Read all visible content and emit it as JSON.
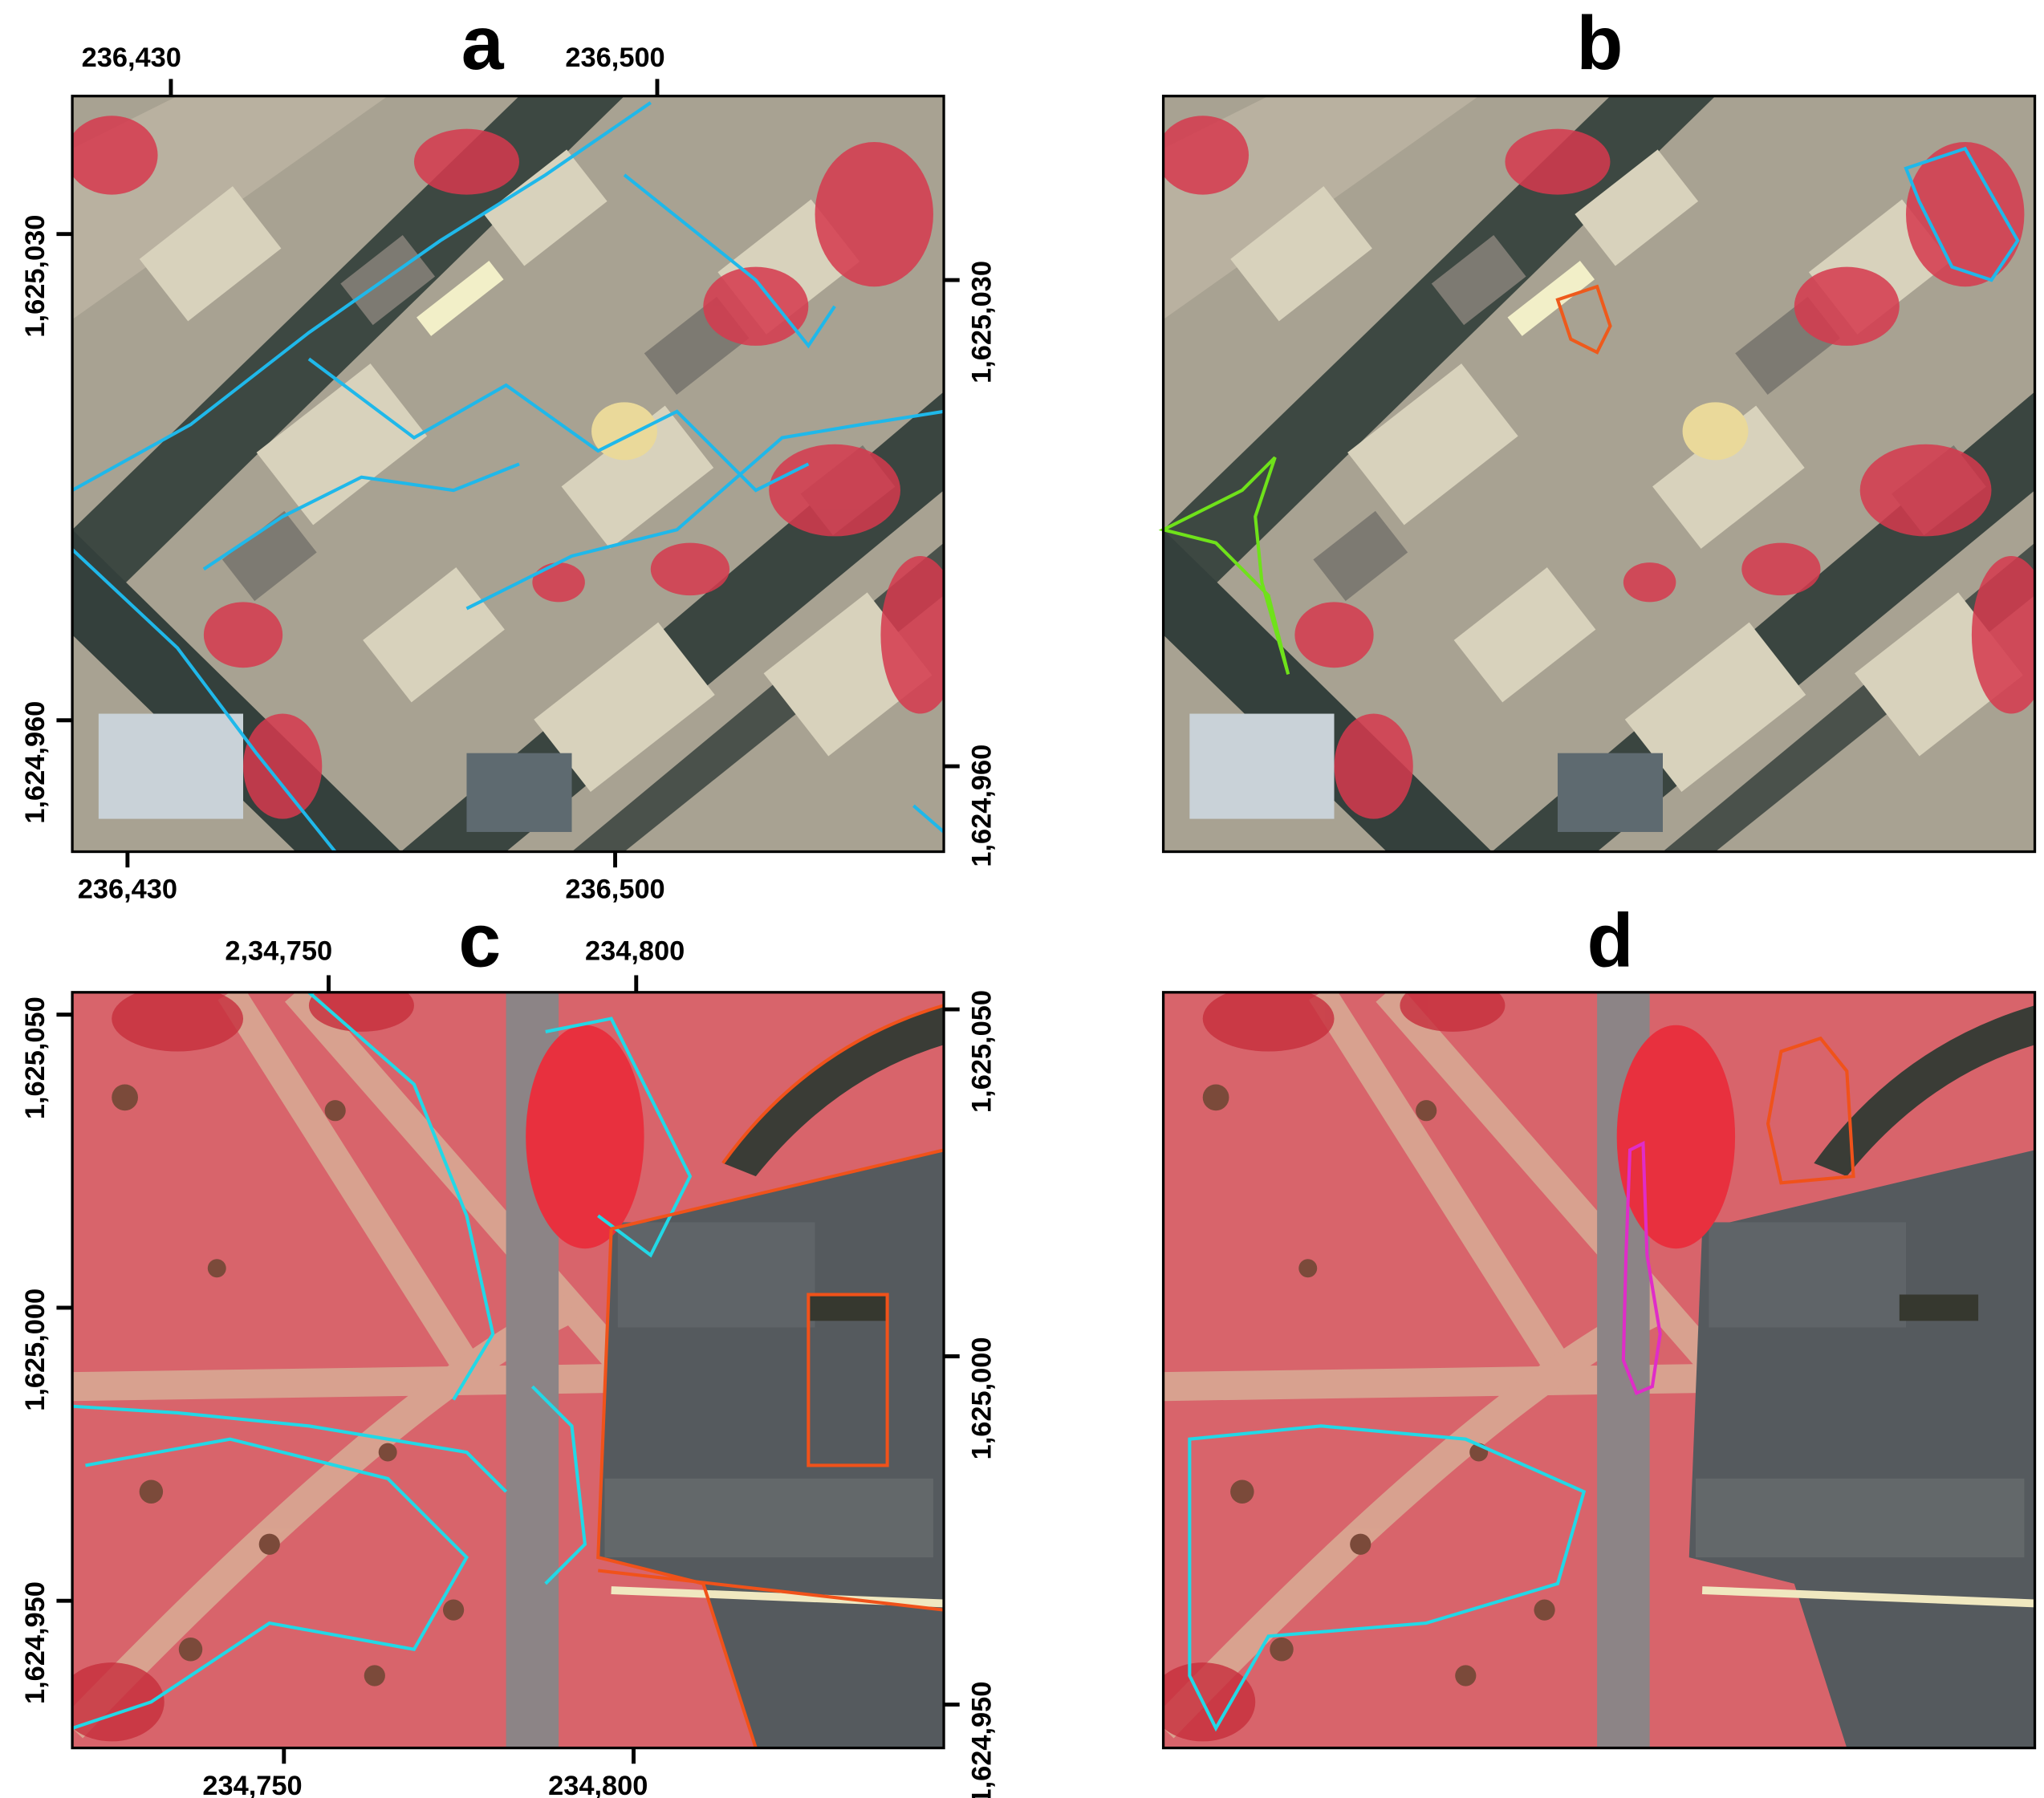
{
  "panels": [
    {
      "label": "a",
      "ticks": {
        "top": [
          "236,430",
          "236,500"
        ],
        "bottom": [
          "236,430",
          "236,500"
        ],
        "left": [
          "1,625,030",
          "1,624,960"
        ],
        "right": [
          "1,625,030",
          "1,624,960"
        ]
      }
    },
    {
      "label": "b"
    },
    {
      "label": "c",
      "ticks": {
        "top": [
          "2,34,750",
          "234,800"
        ],
        "bottom": [
          "234,750",
          "234,800"
        ],
        "left": [
          "1,625,050",
          "1,625,000",
          "1,624,950"
        ],
        "right": [
          "1,625,050",
          "1,625,000",
          "1,624,950"
        ]
      }
    },
    {
      "label": "d"
    }
  ]
}
